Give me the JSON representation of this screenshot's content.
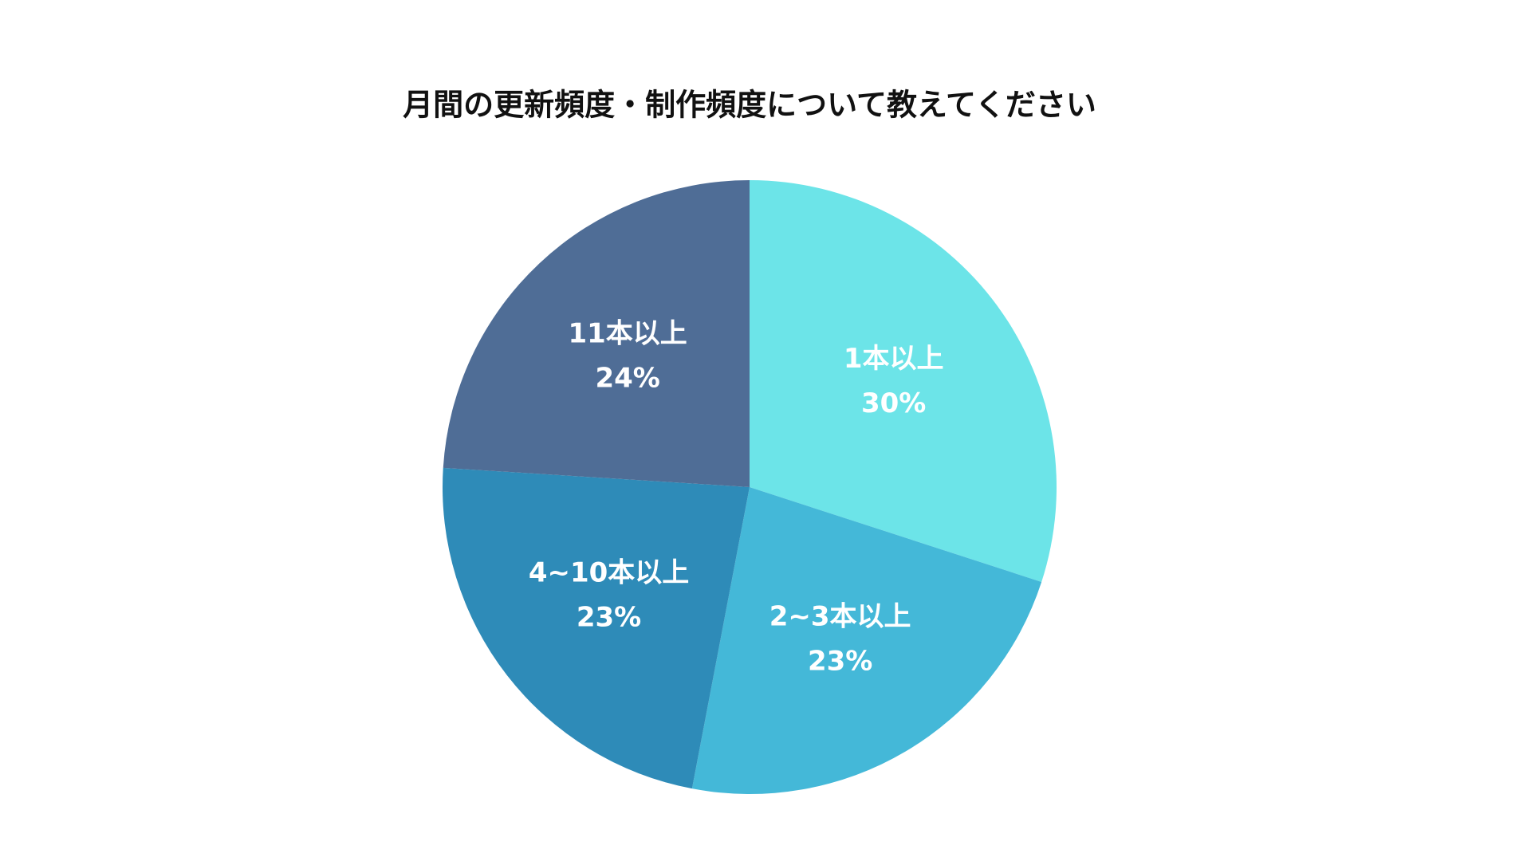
{
  "chart_data": {
    "type": "pie",
    "title": "月間の更新頻度・制作頻度について教えてください",
    "categories": [
      "1本以上",
      "2~3本以上",
      "4~10本以上",
      "11本以上"
    ],
    "values": [
      30,
      23,
      23,
      24
    ],
    "value_labels": [
      "30%",
      "23%",
      "23%",
      "24%"
    ],
    "colors": [
      "#6ce4e8",
      "#44b8d8",
      "#2e8bb8",
      "#4f6d96"
    ]
  }
}
